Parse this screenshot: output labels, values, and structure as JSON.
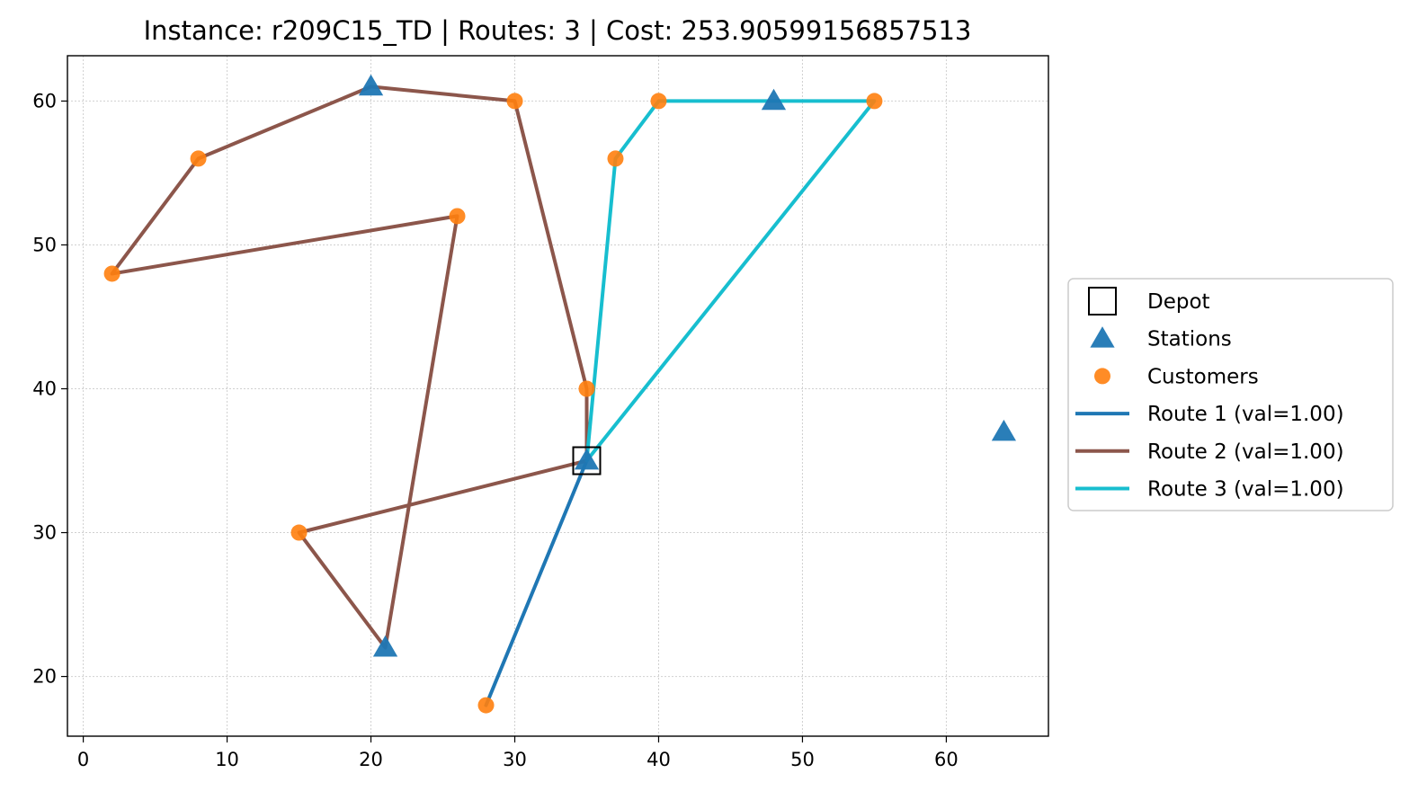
{
  "chart_data": {
    "type": "scatter",
    "title": "Instance: r209C15_TD  |  Routes: 3  |  Cost: 253.90599156857513",
    "xlabel": "",
    "ylabel": "",
    "xlim": [
      -1.1,
      67.1
    ],
    "ylim": [
      15.85,
      63.15
    ],
    "xticks": [
      0,
      10,
      20,
      30,
      40,
      50,
      60
    ],
    "yticks": [
      20,
      30,
      40,
      50,
      60
    ],
    "grid": true,
    "legend_position": "center right (outside)",
    "depot": {
      "name": "Depot",
      "x": 35,
      "y": 35,
      "marker": "square",
      "color": "#000000"
    },
    "stations": {
      "name": "Stations",
      "marker": "triangle",
      "color": "#1f77b4",
      "points": [
        [
          35,
          35
        ],
        [
          20,
          61
        ],
        [
          21,
          22
        ],
        [
          48,
          60
        ],
        [
          64,
          37
        ]
      ]
    },
    "customers": {
      "name": "Customers",
      "marker": "circle",
      "color": "#ff7f0e",
      "points": [
        [
          8,
          56
        ],
        [
          30,
          60
        ],
        [
          2,
          48
        ],
        [
          26,
          52
        ],
        [
          35,
          40
        ],
        [
          15,
          30
        ],
        [
          28,
          18
        ],
        [
          37,
          56
        ],
        [
          40,
          60
        ],
        [
          55,
          60
        ]
      ]
    },
    "routes": [
      {
        "name": "Route 1 (val=1.00)",
        "color": "#1f77b4",
        "path": [
          [
            35,
            35
          ],
          [
            28,
            18
          ],
          [
            35,
            35
          ]
        ]
      },
      {
        "name": "Route 2 (val=1.00)",
        "color": "#8c564b",
        "path": [
          [
            35,
            35
          ],
          [
            15,
            30
          ],
          [
            21,
            22
          ],
          [
            26,
            52
          ],
          [
            2,
            48
          ],
          [
            8,
            56
          ],
          [
            20,
            61
          ],
          [
            30,
            60
          ],
          [
            35,
            40
          ],
          [
            35,
            35
          ]
        ]
      },
      {
        "name": "Route 3 (val=1.00)",
        "color": "#17becf",
        "path": [
          [
            35,
            35
          ],
          [
            37,
            56
          ],
          [
            40,
            60
          ],
          [
            48,
            60
          ],
          [
            55,
            60
          ],
          [
            35,
            35
          ]
        ]
      }
    ]
  }
}
